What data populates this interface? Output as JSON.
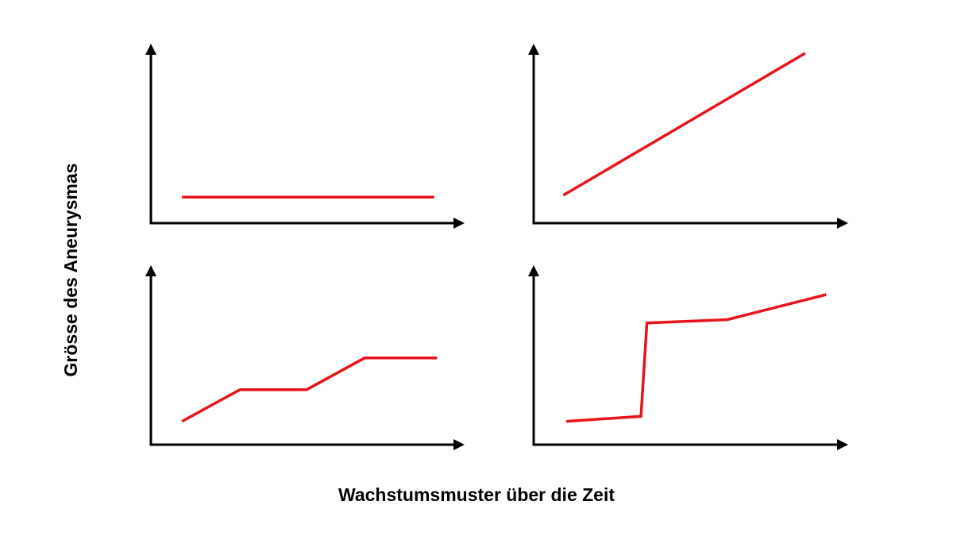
{
  "figure": {
    "ylabel": "Grösse des Aneurysmas",
    "xlabel": "Wachstumsmuster über die Zeit",
    "line_color": "#e8141b",
    "axis_color": "#000000"
  },
  "chart_data": [
    {
      "type": "line",
      "xlim": [
        0,
        100
      ],
      "ylim": [
        0,
        100
      ],
      "grid": false,
      "series": [
        {
          "x": [
            8,
            95
          ],
          "y": [
            13,
            13
          ]
        }
      ]
    },
    {
      "type": "line",
      "xlim": [
        0,
        100
      ],
      "ylim": [
        0,
        100
      ],
      "grid": false,
      "series": [
        {
          "x": [
            7,
            88
          ],
          "y": [
            14,
            100
          ]
        }
      ]
    },
    {
      "type": "line",
      "xlim": [
        0,
        100
      ],
      "ylim": [
        0,
        100
      ],
      "grid": false,
      "series": [
        {
          "x": [
            8,
            28,
            51,
            71,
            96
          ],
          "y": [
            14,
            33,
            33,
            52,
            52
          ]
        }
      ]
    },
    {
      "type": "line",
      "xlim": [
        0,
        100
      ],
      "ylim": [
        0,
        100
      ],
      "grid": false,
      "series": [
        {
          "x": [
            8,
            33,
            35,
            62,
            95
          ],
          "y": [
            14,
            17,
            73,
            75,
            90
          ]
        }
      ]
    }
  ]
}
